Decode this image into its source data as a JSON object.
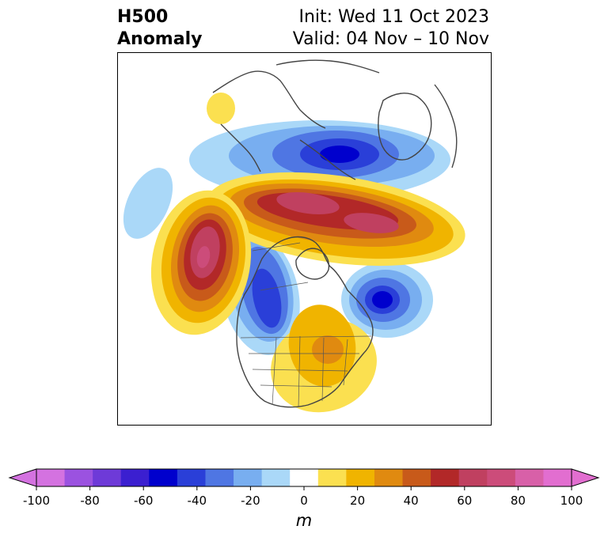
{
  "title": {
    "left_line1": "H500",
    "left_line2": "Anomaly",
    "right_line1": "Init: Wed 11 Oct 2023",
    "right_line2": "Valid: 04 Nov – 10 Nov"
  },
  "colorbar": {
    "unit": "m",
    "tick_labels": [
      "-100",
      "-80",
      "-60",
      "-40",
      "-20",
      "0",
      "20",
      "40",
      "60",
      "80",
      "100"
    ],
    "levels": [
      -100,
      -90,
      -80,
      -70,
      -60,
      -50,
      -40,
      -30,
      -20,
      -10,
      10,
      20,
      30,
      40,
      50,
      60,
      70,
      80,
      90,
      100
    ],
    "colors": [
      "#d472e0",
      "#9b52e0",
      "#6e3ad8",
      "#3b1fd0",
      "#0000cd",
      "#2a3fd8",
      "#4f76e3",
      "#78aef0",
      "#aad8f8",
      "#ffffff",
      "#fbe050",
      "#f0b400",
      "#e08a10",
      "#c85a1a",
      "#b22828",
      "#c04060",
      "#cc4c7a",
      "#d860a8",
      "#e26ed0"
    ],
    "under_color": "#d472e0",
    "over_color": "#e26ed0"
  },
  "map": {
    "projection": "polar stereographic (North America)",
    "anomalies": [
      {
        "name": "northern Canada / Hudson Bay ridge",
        "sign": "positive",
        "peak_m": 70
      },
      {
        "name": "Gulf of Alaska ridge",
        "sign": "positive",
        "peak_m": 80
      },
      {
        "name": "eastern US ridge",
        "sign": "positive",
        "peak_m": 40
      },
      {
        "name": "Alaska trough",
        "sign": "negative",
        "peak_m": -60
      },
      {
        "name": "western Canada / US trough",
        "sign": "negative",
        "peak_m": -50
      },
      {
        "name": "north Atlantic trough",
        "sign": "negative",
        "peak_m": -60
      },
      {
        "name": "east Pacific trough",
        "sign": "negative",
        "peak_m": -20
      }
    ]
  }
}
